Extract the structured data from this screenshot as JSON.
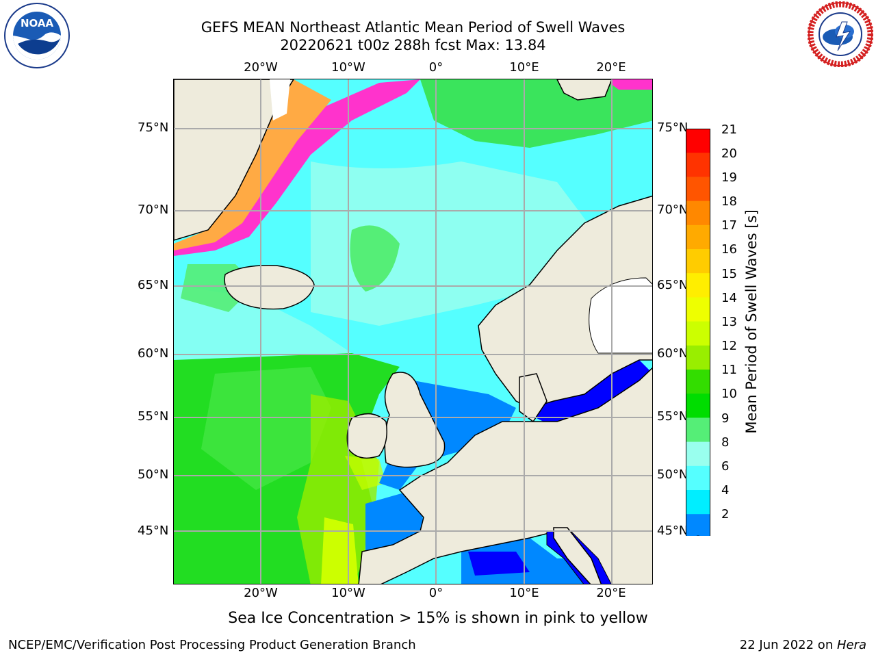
{
  "header": {
    "title_line1": "GEFS MEAN Northeast Atlantic Mean Period of Swell Waves",
    "title_line2": "20220621 t00z 288h fcst   Max: 13.84"
  },
  "logos": {
    "left": {
      "name": "NOARA",
      "text": "NOAA"
    },
    "right": {
      "name": "NATIONAL WEATHER SERVICE"
    }
  },
  "map": {
    "lon_labels": [
      "20°W",
      "10°W",
      "0°",
      "10°E",
      "20°E"
    ],
    "lat_labels": [
      "75°N",
      "70°N",
      "65°N",
      "60°N",
      "55°N",
      "50°N",
      "45°N"
    ],
    "colors": {
      "land": "#eeebdc",
      "ice_pink": "#ff33cc",
      "ice_orange": "#ffaa44",
      "ice_white": "#ffffff"
    }
  },
  "colorbar": {
    "label": "Mean Period of Swell Waves [s]",
    "ticks": [
      "21",
      "20",
      "19",
      "18",
      "17",
      "16",
      "15",
      "14",
      "13",
      "12",
      "11",
      "10",
      "9",
      "8",
      "6",
      "4",
      "2"
    ],
    "colors": [
      "#ff0000",
      "#ff3300",
      "#ff5500",
      "#ff8800",
      "#ffaa00",
      "#ffcc00",
      "#ffee00",
      "#eeff00",
      "#ccff00",
      "#99ee00",
      "#33dd00",
      "#00dd00",
      "#55ee77",
      "#99ffee",
      "#55ffff",
      "#00eeff",
      "#0088ff",
      "#0000ff"
    ]
  },
  "footer": {
    "note": "Sea Ice Concentration > 15% is shown in pink to yellow",
    "left": "NCEP/EMC/Verification Post Processing Product Generation Branch",
    "right_date": "22 Jun 2022 on ",
    "right_host": "Hera"
  }
}
